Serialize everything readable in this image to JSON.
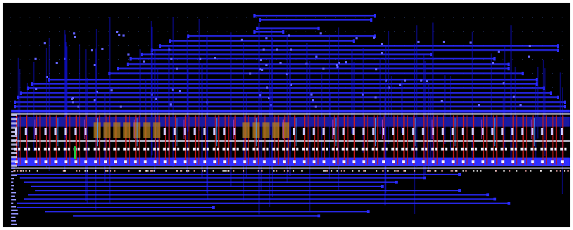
{
  "viewer": {
    "window_title": "",
    "background_color": "#000000",
    "border_color": "#ffffff"
  },
  "layout": {
    "description": "",
    "colors": {
      "metal_route": "#1010d8",
      "metal_route_bright": "#2a2aff",
      "power_rail": "#3030ff",
      "via": "#e8e8ff",
      "poly": "#d01818",
      "diffusion": "#b08020",
      "active_green": "#20c040",
      "magenta": "#c040c0",
      "cyan": "#40a0ff",
      "grid_dot": "#203060"
    },
    "cells": {
      "count": 56
    }
  }
}
